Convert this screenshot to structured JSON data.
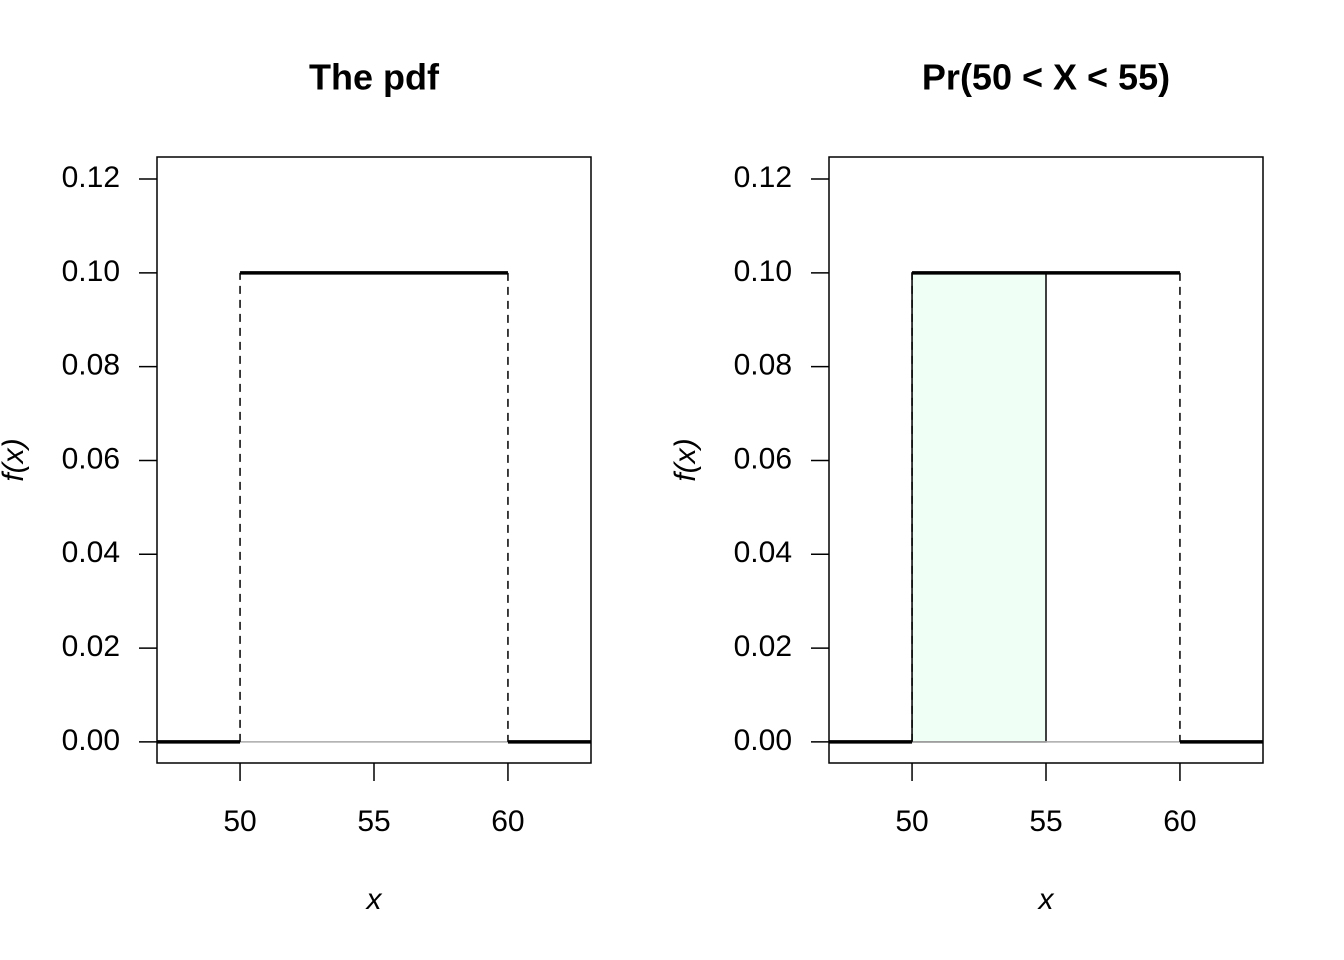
{
  "chart_data": [
    {
      "type": "line",
      "title": "The pdf",
      "xlabel": "x",
      "ylabel": "f(x)",
      "x": [
        46.9,
        50,
        50,
        60,
        60,
        63.1
      ],
      "values": [
        0,
        0,
        0.1,
        0.1,
        0,
        0
      ],
      "color": "#000000",
      "baseline": 0,
      "baseline_color": "#aaaaaa",
      "xlim": [
        46.9,
        63.1
      ],
      "xticks": [
        50,
        55,
        60
      ],
      "ylim": [
        -0.0045,
        0.1247
      ],
      "yticks": [
        {
          "value": 0,
          "label": "0.00"
        },
        {
          "value": 0.02,
          "label": "0.02"
        },
        {
          "value": 0.04,
          "label": "0.04"
        },
        {
          "value": 0.06,
          "label": "0.06"
        },
        {
          "value": 0.08,
          "label": "0.08"
        },
        {
          "value": 0.1,
          "label": "0.10"
        },
        {
          "value": 0.12,
          "label": "0.12"
        }
      ]
    },
    {
      "type": "line",
      "title": "Pr(50 < X < 55)",
      "xlabel": "x",
      "ylabel": "f(x)",
      "x": [
        46.9,
        50,
        50,
        60,
        60,
        63.1
      ],
      "values": [
        0,
        0,
        0.1,
        0.1,
        0,
        0
      ],
      "color": "#000000",
      "baseline": 0,
      "baseline_color": "#aaaaaa",
      "shade": {
        "x": [
          50,
          55
        ],
        "value": 0.1,
        "color": "#f0fff5"
      },
      "xlim": [
        46.9,
        63.1
      ],
      "xticks": [
        50,
        55,
        60
      ],
      "ylim": [
        -0.0045,
        0.1247
      ],
      "yticks": [
        {
          "value": 0,
          "label": "0.00"
        },
        {
          "value": 0.02,
          "label": "0.02"
        },
        {
          "value": 0.04,
          "label": "0.04"
        },
        {
          "value": 0.06,
          "label": "0.06"
        },
        {
          "value": 0.08,
          "label": "0.08"
        },
        {
          "value": 0.1,
          "label": "0.10"
        },
        {
          "value": 0.12,
          "label": "0.12"
        }
      ]
    }
  ]
}
